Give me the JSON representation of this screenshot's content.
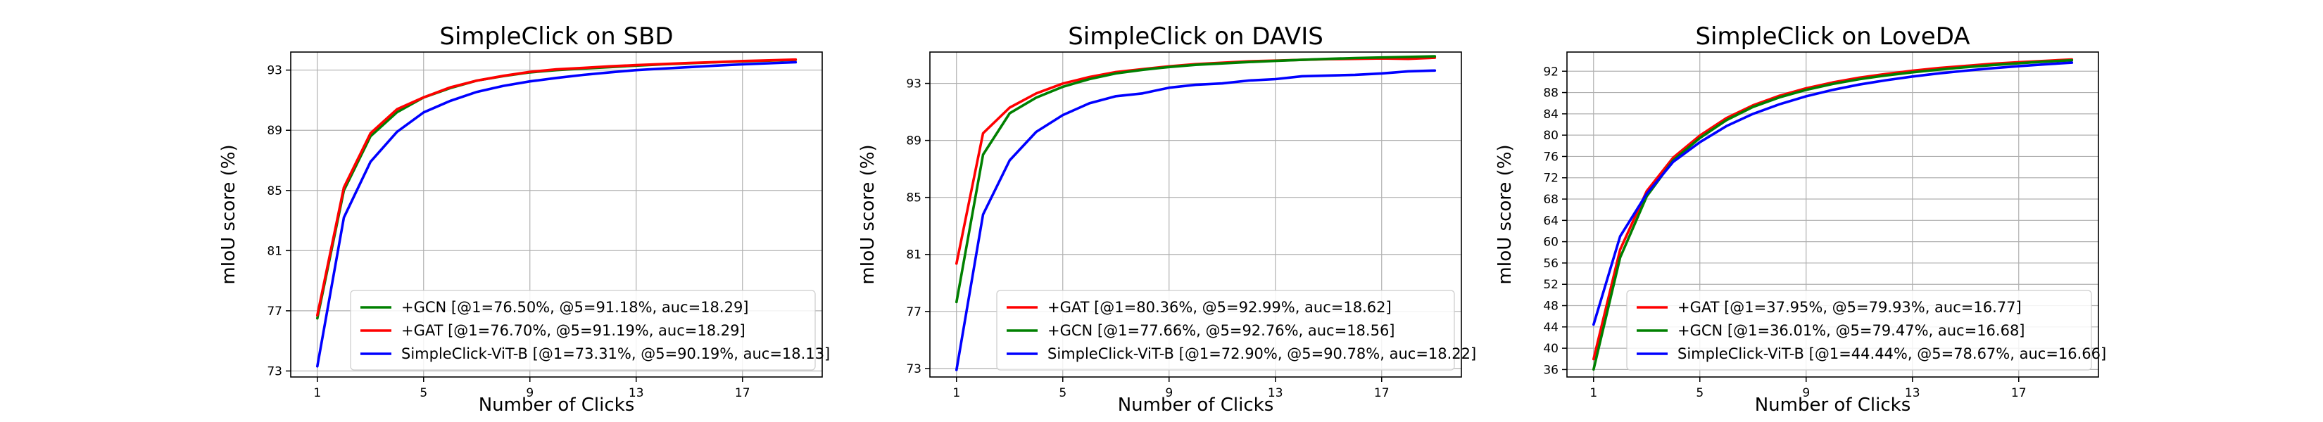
{
  "chart_data": [
    {
      "type": "line",
      "title": "SimpleClick on SBD",
      "xlabel": "Number of Clicks",
      "ylabel": "mIoU score (%)",
      "xlim": [
        0,
        20
      ],
      "ylim": [
        72.6,
        94.2
      ],
      "xticks": [
        1,
        5,
        9,
        13,
        17
      ],
      "yticks": [
        73,
        77,
        81,
        85,
        89,
        93
      ],
      "grid": true,
      "legend_position": "lower-right",
      "x": [
        1,
        2,
        3,
        4,
        5,
        6,
        7,
        8,
        9,
        10,
        11,
        12,
        13,
        14,
        15,
        16,
        17,
        18,
        19
      ],
      "series": [
        {
          "name": "+GCN [@1=76.50%, @5=91.18%, auc=18.29]",
          "color": "#008000",
          "values": [
            76.5,
            85.0,
            88.6,
            90.2,
            91.18,
            91.8,
            92.3,
            92.6,
            92.85,
            93.0,
            93.1,
            93.2,
            93.3,
            93.38,
            93.45,
            93.52,
            93.58,
            93.63,
            93.68
          ]
        },
        {
          "name": "+GAT [@1=76.70%, @5=91.19%, auc=18.29]",
          "color": "#ff0000",
          "values": [
            76.7,
            85.2,
            88.8,
            90.4,
            91.19,
            91.85,
            92.3,
            92.62,
            92.88,
            93.05,
            93.15,
            93.25,
            93.33,
            93.4,
            93.47,
            93.53,
            93.6,
            93.65,
            93.7
          ]
        },
        {
          "name": "SimpleClick-ViT-B [@1=73.31%, @5=90.19%, auc=18.13]",
          "color": "#0000ff",
          "values": [
            73.31,
            83.2,
            86.9,
            88.9,
            90.19,
            90.95,
            91.55,
            91.95,
            92.25,
            92.48,
            92.68,
            92.85,
            93.0,
            93.1,
            93.2,
            93.3,
            93.38,
            93.45,
            93.52
          ]
        }
      ]
    },
    {
      "type": "line",
      "title": "SimpleClick on DAVIS",
      "xlabel": "Number of Clicks",
      "ylabel": "mIoU score (%)",
      "xlim": [
        0,
        20
      ],
      "ylim": [
        72.4,
        95.2
      ],
      "xticks": [
        1,
        5,
        9,
        13,
        17
      ],
      "yticks": [
        73,
        77,
        81,
        85,
        89,
        93
      ],
      "grid": true,
      "legend_position": "lower-right",
      "x": [
        1,
        2,
        3,
        4,
        5,
        6,
        7,
        8,
        9,
        10,
        11,
        12,
        13,
        14,
        15,
        16,
        17,
        18,
        19
      ],
      "series": [
        {
          "name": "+GAT [@1=80.36%, @5=92.99%, auc=18.62]",
          "color": "#ff0000",
          "values": [
            80.36,
            89.5,
            91.3,
            92.3,
            92.99,
            93.45,
            93.8,
            94.0,
            94.2,
            94.35,
            94.45,
            94.55,
            94.6,
            94.65,
            94.7,
            94.72,
            94.75,
            94.72,
            94.8
          ]
        },
        {
          "name": "+GCN [@1=77.66%, @5=92.76%, auc=18.56]",
          "color": "#008000",
          "values": [
            77.66,
            88.0,
            90.9,
            92.0,
            92.76,
            93.3,
            93.7,
            93.95,
            94.15,
            94.3,
            94.4,
            94.5,
            94.58,
            94.65,
            94.72,
            94.78,
            94.82,
            94.86,
            94.9
          ]
        },
        {
          "name": "SimpleClick-ViT-B [@1=72.90%, @5=90.78%, auc=18.22]",
          "color": "#0000ff",
          "values": [
            72.9,
            83.8,
            87.6,
            89.6,
            90.78,
            91.6,
            92.1,
            92.3,
            92.7,
            92.9,
            93.0,
            93.2,
            93.3,
            93.5,
            93.55,
            93.6,
            93.7,
            93.85,
            93.9
          ]
        }
      ]
    },
    {
      "type": "line",
      "title": "SimpleClick on LoveDA",
      "xlabel": "Number of Clicks",
      "ylabel": "mIoU score (%)",
      "xlim": [
        0,
        20
      ],
      "ylim": [
        34.6,
        95.6
      ],
      "xticks": [
        1,
        5,
        9,
        13,
        17
      ],
      "yticks": [
        36,
        40,
        44,
        48,
        52,
        56,
        60,
        64,
        68,
        72,
        76,
        80,
        84,
        88,
        92
      ],
      "grid": true,
      "legend_position": "lower-right",
      "x": [
        1,
        2,
        3,
        4,
        5,
        6,
        7,
        8,
        9,
        10,
        11,
        12,
        13,
        14,
        15,
        16,
        17,
        18,
        19
      ],
      "series": [
        {
          "name": "+GAT [@1=37.95%, @5=79.93%, auc=16.77]",
          "color": "#ff0000",
          "values": [
            37.95,
            58.5,
            69.5,
            75.8,
            79.93,
            83.2,
            85.6,
            87.4,
            88.8,
            89.9,
            90.8,
            91.5,
            92.1,
            92.6,
            93.0,
            93.4,
            93.7,
            93.95,
            94.2
          ]
        },
        {
          "name": "+GCN [@1=36.01%, @5=79.47%, auc=16.68]",
          "color": "#008000",
          "values": [
            36.01,
            57.0,
            68.5,
            75.3,
            79.47,
            82.8,
            85.3,
            87.1,
            88.5,
            89.6,
            90.5,
            91.2,
            91.8,
            92.3,
            92.75,
            93.15,
            93.5,
            93.8,
            94.05
          ]
        },
        {
          "name": "SimpleClick-ViT-B [@1=44.44%, @5=78.67%, auc=16.66]",
          "color": "#0000ff",
          "values": [
            44.44,
            61.0,
            69.0,
            75.0,
            78.67,
            81.7,
            84.0,
            85.8,
            87.3,
            88.5,
            89.5,
            90.3,
            91.0,
            91.6,
            92.1,
            92.55,
            92.95,
            93.3,
            93.6
          ]
        }
      ]
    }
  ]
}
